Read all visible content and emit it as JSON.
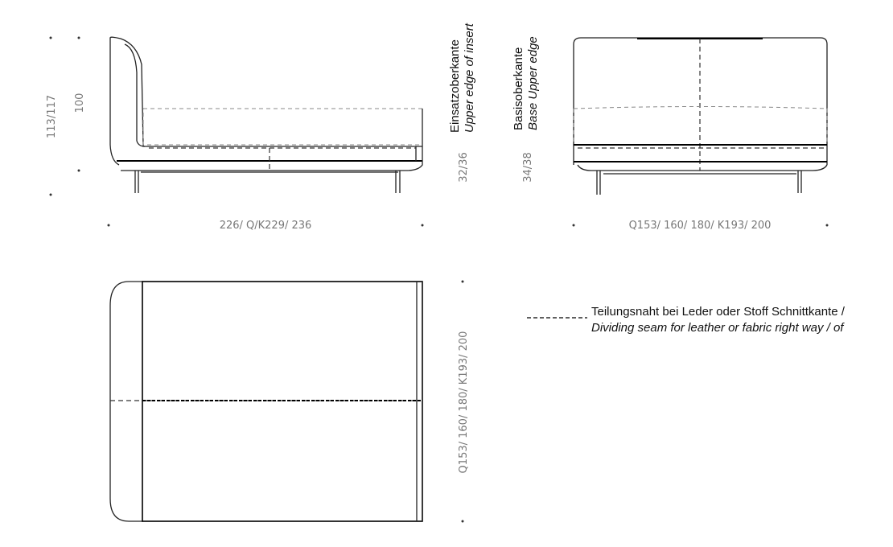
{
  "side_view": {
    "height_total": "113/117",
    "height_headboard": "100",
    "length": "226/ Q/K229/ 236",
    "insert_height": "32/36"
  },
  "labels": {
    "insert_edge_de": "Einsatzoberkante",
    "insert_edge_en": "Upper edge of insert",
    "base_edge_de": "Basisoberkante",
    "base_edge_en": "Base Upper edge"
  },
  "front_view": {
    "width": "Q153/ 160/ 180/ K193/ 200",
    "base_height": "34/38"
  },
  "top_view": {
    "width": "Q153/ 160/ 180/ K193/ 200"
  },
  "legend": {
    "line1": "Teilungsnaht bei Leder oder Stoff Schnittkante /",
    "line2": "Dividing seam for leather or fabric right way / of"
  }
}
